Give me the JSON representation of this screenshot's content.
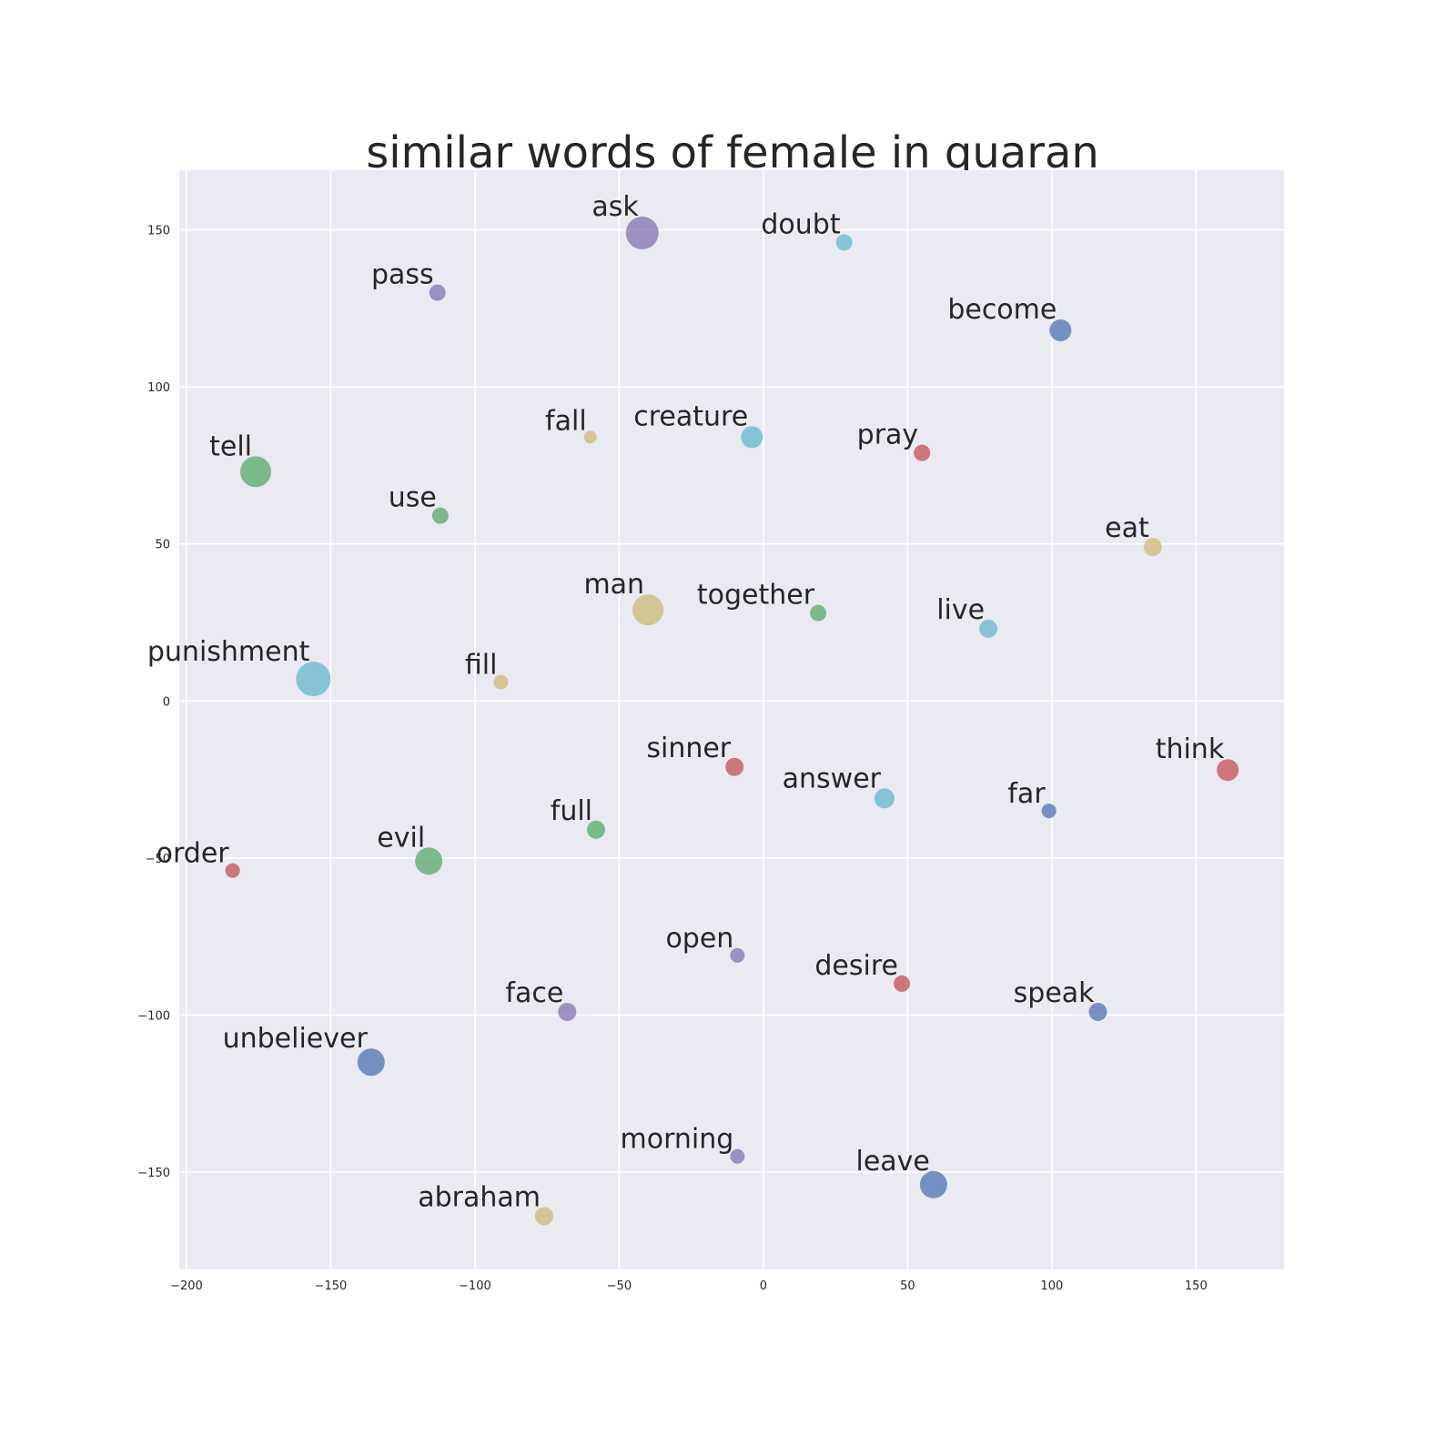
{
  "chart_data": {
    "type": "scatter",
    "title": "similar words of female in quaran",
    "xlabel": "",
    "ylabel": "",
    "xlim": [
      -202.5,
      180.5
    ],
    "ylim": [
      -181,
      169
    ],
    "xticks": [
      -200,
      -150,
      -100,
      -50,
      0,
      50,
      100,
      150
    ],
    "yticks": [
      -150,
      -100,
      -50,
      0,
      50,
      100,
      150
    ],
    "xtick_labels": [
      "−200",
      "−150",
      "−100",
      "−50",
      "0",
      "50",
      "100",
      "150"
    ],
    "ytick_labels": [
      "−150",
      "−100",
      "−50",
      "0",
      "50",
      "100",
      "150"
    ],
    "grid": true,
    "palette": {
      "blue": "#4c72b0",
      "green": "#55a868",
      "red": "#c44e52",
      "purple": "#8172b2",
      "yellow": "#ccb974",
      "cyan": "#64b5cd"
    },
    "points": [
      {
        "label": "ask",
        "x": -42,
        "y": 149,
        "size": 18,
        "color": "purple"
      },
      {
        "label": "doubt",
        "x": 28,
        "y": 146,
        "size": 9,
        "color": "cyan"
      },
      {
        "label": "pass",
        "x": -113,
        "y": 130,
        "size": 9,
        "color": "purple"
      },
      {
        "label": "become",
        "x": 103,
        "y": 118,
        "size": 12,
        "color": "blue"
      },
      {
        "label": "fall",
        "x": -60,
        "y": 84,
        "size": 7,
        "color": "yellow"
      },
      {
        "label": "creature",
        "x": -4,
        "y": 84,
        "size": 12,
        "color": "cyan"
      },
      {
        "label": "pray",
        "x": 55,
        "y": 79,
        "size": 9,
        "color": "red"
      },
      {
        "label": "tell",
        "x": -176,
        "y": 73,
        "size": 17,
        "color": "green"
      },
      {
        "label": "use",
        "x": -112,
        "y": 59,
        "size": 9,
        "color": "green"
      },
      {
        "label": "eat",
        "x": 135,
        "y": 49,
        "size": 10,
        "color": "yellow"
      },
      {
        "label": "man",
        "x": -40,
        "y": 29,
        "size": 17,
        "color": "yellow"
      },
      {
        "label": "together",
        "x": 19,
        "y": 28,
        "size": 9,
        "color": "green"
      },
      {
        "label": "live",
        "x": 78,
        "y": 23,
        "size": 10,
        "color": "cyan"
      },
      {
        "label": "punishment",
        "x": -156,
        "y": 7,
        "size": 19,
        "color": "cyan"
      },
      {
        "label": "fill",
        "x": -91,
        "y": 6,
        "size": 8,
        "color": "yellow"
      },
      {
        "label": "sinner",
        "x": -10,
        "y": -21,
        "size": 10,
        "color": "red"
      },
      {
        "label": "think",
        "x": 161,
        "y": -22,
        "size": 12,
        "color": "red"
      },
      {
        "label": "answer",
        "x": 42,
        "y": -31,
        "size": 11,
        "color": "cyan"
      },
      {
        "label": "far",
        "x": 99,
        "y": -35,
        "size": 8,
        "color": "blue"
      },
      {
        "label": "full",
        "x": -58,
        "y": -41,
        "size": 10,
        "color": "green"
      },
      {
        "label": "evil",
        "x": -116,
        "y": -51,
        "size": 15,
        "color": "green"
      },
      {
        "label": "order",
        "x": -184,
        "y": -54,
        "size": 8,
        "color": "red"
      },
      {
        "label": "open",
        "x": -9,
        "y": -81,
        "size": 8,
        "color": "purple"
      },
      {
        "label": "desire",
        "x": 48,
        "y": -90,
        "size": 9,
        "color": "red"
      },
      {
        "label": "face",
        "x": -68,
        "y": -99,
        "size": 10,
        "color": "purple"
      },
      {
        "label": "speak",
        "x": 116,
        "y": -99,
        "size": 10,
        "color": "blue"
      },
      {
        "label": "unbeliever",
        "x": -136,
        "y": -115,
        "size": 15,
        "color": "blue"
      },
      {
        "label": "morning",
        "x": -9,
        "y": -145,
        "size": 8,
        "color": "purple"
      },
      {
        "label": "leave",
        "x": 59,
        "y": -154,
        "size": 15,
        "color": "blue"
      },
      {
        "label": "abraham",
        "x": -76,
        "y": -164,
        "size": 10,
        "color": "yellow"
      }
    ]
  }
}
